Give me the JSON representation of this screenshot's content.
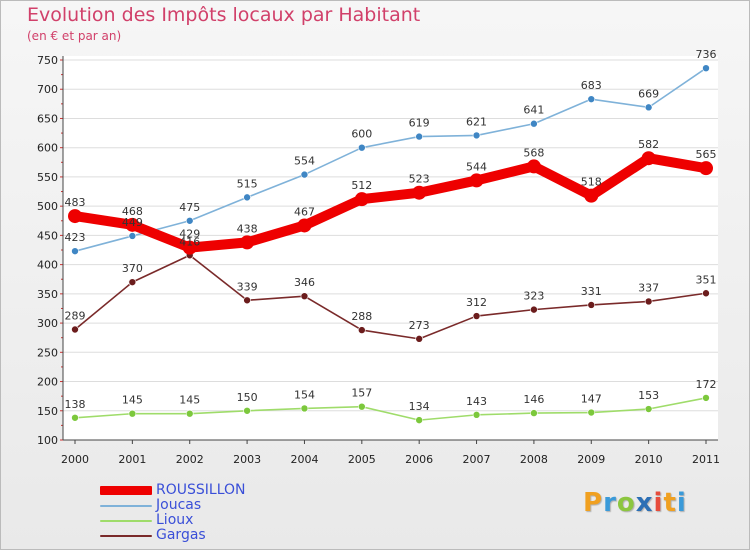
{
  "header": {
    "title": "Evolution des Impôts locaux par Habitant",
    "subtitle": "(en € et par an)"
  },
  "logo": {
    "letters": [
      "P",
      "r",
      "o",
      "x",
      "i",
      "t",
      "i"
    ],
    "colors": [
      "#f0a020",
      "#3a9ad9",
      "#8cc63f",
      "#2c6fb5",
      "#e74c3c",
      "#f0a020",
      "#3a9ad9"
    ]
  },
  "chart_data": {
    "type": "line",
    "title": "Evolution des Impôts locaux par Habitant",
    "subtitle": "(en € et par an)",
    "xlabel": "",
    "ylabel": "",
    "categories": [
      "2000",
      "2001",
      "2002",
      "2003",
      "2004",
      "2005",
      "2006",
      "2007",
      "2008",
      "2009",
      "2010",
      "2011"
    ],
    "ylim": [
      100,
      750
    ],
    "yticks": [
      100,
      150,
      200,
      250,
      300,
      350,
      400,
      450,
      500,
      550,
      600,
      650,
      700,
      750
    ],
    "grid": "horizontal",
    "legend_position": "bottom-left",
    "series": [
      {
        "name": "Gargas",
        "color": "#7a2a2a",
        "marker_color": "#6b1c1c",
        "emphasis": false,
        "values": [
          289,
          370,
          416,
          339,
          346,
          288,
          273,
          312,
          323,
          331,
          337,
          351
        ],
        "labels": [
          "289",
          "370",
          "416",
          "339",
          "346",
          "288",
          "273",
          "312",
          "323",
          "331",
          "337",
          "351"
        ]
      },
      {
        "name": "Lioux",
        "color": "#9fdc6a",
        "marker_color": "#7cc83c",
        "emphasis": false,
        "values": [
          138,
          145,
          145,
          150,
          154,
          157,
          134,
          143,
          146,
          147,
          153,
          172
        ],
        "labels": [
          "138",
          "145",
          "145",
          "150",
          "154",
          "157",
          "134",
          "143",
          "146",
          "147",
          "153",
          "172"
        ]
      },
      {
        "name": "Joucas",
        "color": "#7fb2d9",
        "marker_color": "#3f86c4",
        "emphasis": false,
        "values": [
          423,
          449,
          475,
          515,
          554,
          600,
          619,
          621,
          641,
          683,
          669,
          736
        ],
        "labels": [
          "423",
          "449",
          "475",
          "515",
          "554",
          "600",
          "619",
          "621",
          "641",
          "683",
          "669",
          "736"
        ]
      },
      {
        "name": "ROUSSILLON",
        "color": "#ee0000",
        "marker_color": "#ee0000",
        "emphasis": true,
        "values": [
          483,
          468,
          429,
          438,
          467,
          512,
          523,
          544,
          568,
          518,
          582,
          565
        ],
        "labels": [
          "483",
          "468",
          "429",
          "438",
          "467",
          "512",
          "523",
          "544",
          "568",
          "518",
          "582",
          "565"
        ]
      }
    ]
  },
  "legend": [
    {
      "name": "ROUSSILLON",
      "color": "#ee0000",
      "text_color": "#3a4fd8"
    },
    {
      "name": "Joucas",
      "color": "#7fb2d9",
      "text_color": "#3a4fd8"
    },
    {
      "name": "Lioux",
      "color": "#9fdc6a",
      "text_color": "#3a4fd8"
    },
    {
      "name": "Gargas",
      "color": "#7a2a2a",
      "text_color": "#3a4fd8"
    }
  ]
}
